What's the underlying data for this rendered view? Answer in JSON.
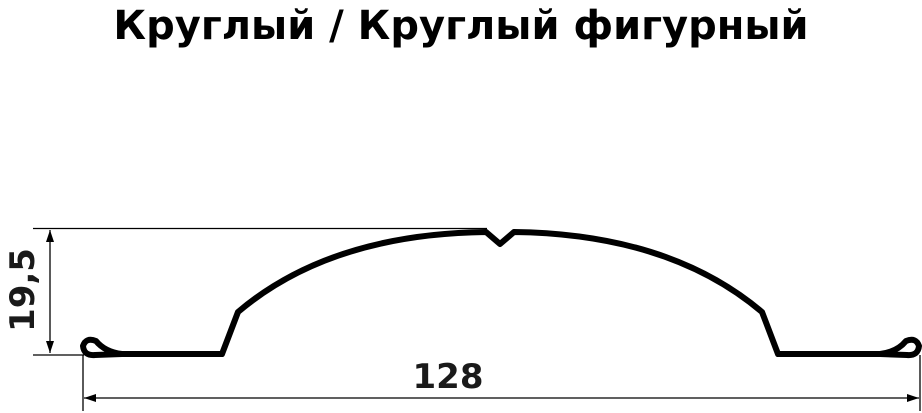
{
  "title": "Круглый / Круглый фигурный",
  "dimensions": {
    "height": "19,5",
    "width": "128"
  },
  "colors": {
    "profile": "#000000",
    "text": "#1a1a1a"
  }
}
